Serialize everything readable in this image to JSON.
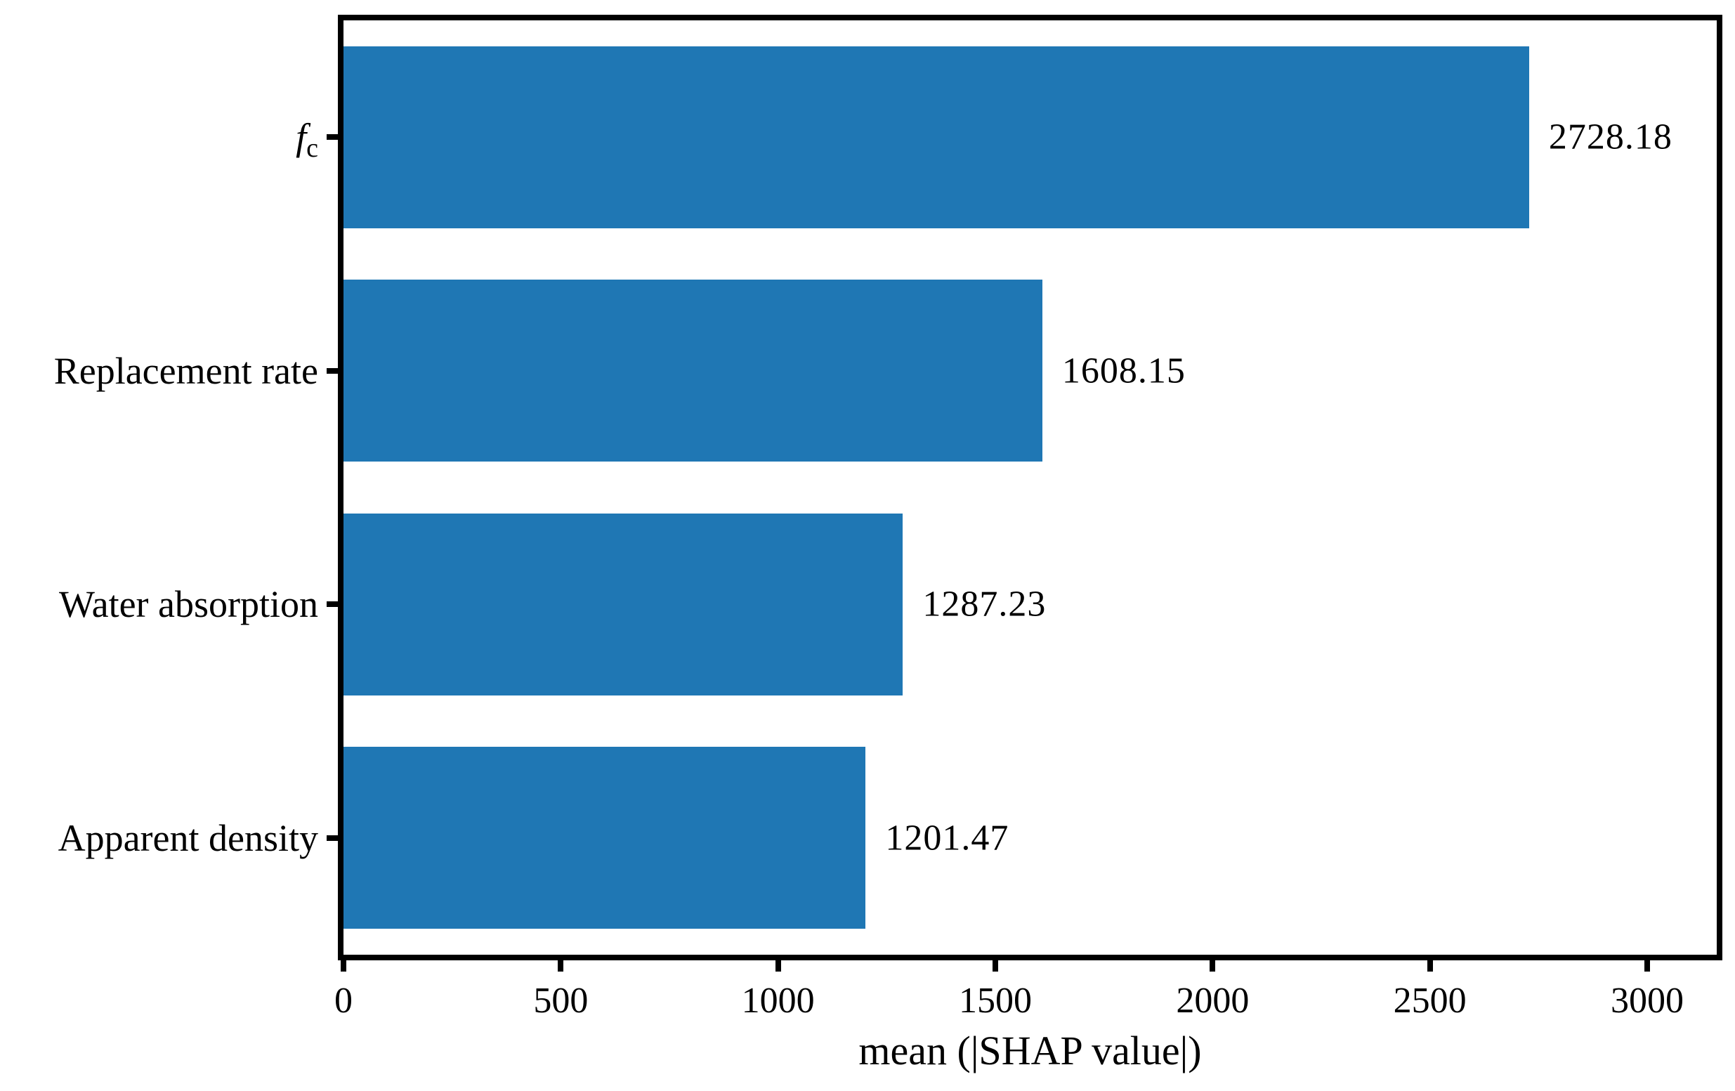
{
  "chart_data": {
    "type": "bar",
    "orientation": "horizontal",
    "title": "",
    "xlabel": "mean (|SHAP value|)",
    "ylabel": "",
    "categories": [
      {
        "label": "f",
        "subscript": "c",
        "italic": true
      },
      {
        "label": "Replacement rate",
        "subscript": "",
        "italic": false
      },
      {
        "label": "Water absorption",
        "subscript": "",
        "italic": false
      },
      {
        "label": "Apparent density",
        "subscript": "",
        "italic": false
      }
    ],
    "values": [
      2728.18,
      1608.15,
      1287.23,
      1201.47
    ],
    "value_labels": [
      "2728.18",
      "1608.15",
      "1287.23",
      "1201.47"
    ],
    "x_ticks": [
      0,
      500,
      1000,
      1500,
      2000,
      2500,
      3000
    ],
    "x_tick_labels": [
      "0",
      "500",
      "1000",
      "1500",
      "2000",
      "2500",
      "3000"
    ],
    "xlim": [
      0,
      3160
    ],
    "grid": false,
    "legend": null,
    "bar_color": "#1f77b4",
    "axis_color": "#000000",
    "text_color": "#000000"
  }
}
